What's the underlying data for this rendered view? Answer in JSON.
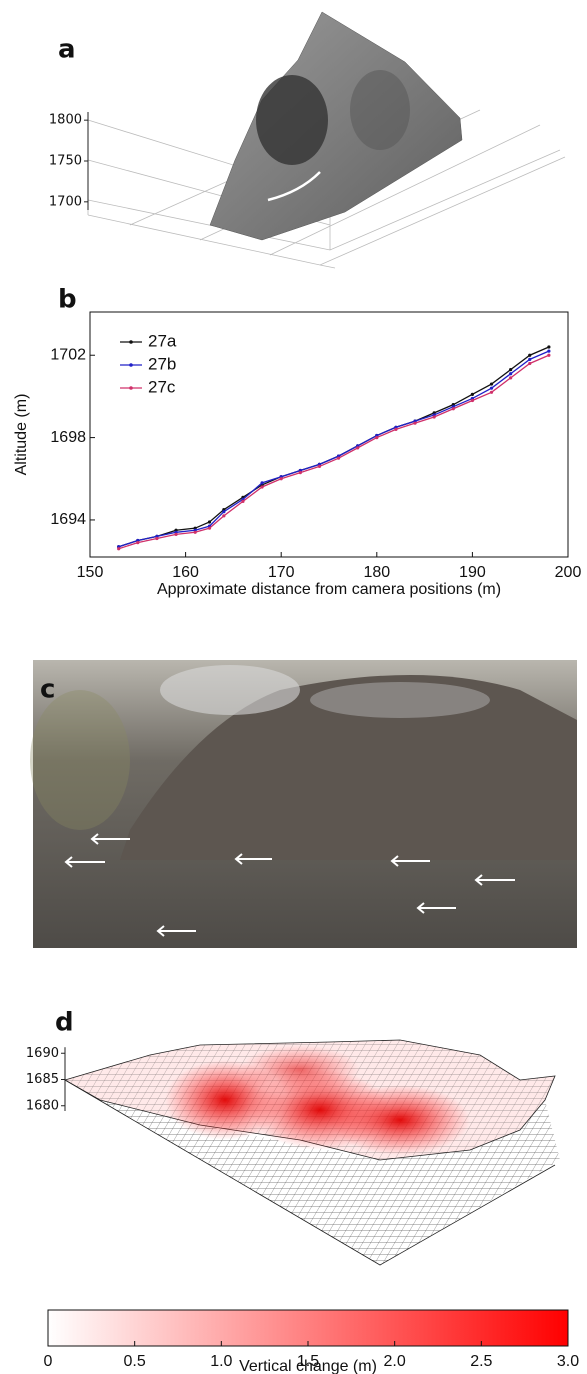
{
  "chart_data": [
    {
      "type": "surface",
      "panel_label": "a",
      "zlim": [
        1690,
        1810
      ],
      "zticks": [
        1800,
        1750,
        1700
      ],
      "color": "#7a7a7a"
    },
    {
      "type": "line",
      "panel_label": "b",
      "xlabel": "Approximate distance from camera positions (m)",
      "ylabel": "Altitude (m)",
      "x": [
        153,
        155,
        157,
        159,
        161,
        162.5,
        164,
        166,
        168,
        170,
        172,
        174,
        176,
        178,
        180,
        182,
        184,
        186,
        188,
        190,
        192,
        194,
        196,
        198
      ],
      "series": [
        {
          "name": "27a",
          "color": "#111111",
          "values": [
            1692.7,
            1693.0,
            1693.2,
            1693.5,
            1693.6,
            1693.9,
            1694.5,
            1695.1,
            1695.7,
            1696.1,
            1696.4,
            1696.7,
            1697.1,
            1697.6,
            1698.1,
            1698.5,
            1698.8,
            1699.2,
            1699.6,
            1700.1,
            1700.6,
            1701.3,
            1702.0,
            1702.4
          ]
        },
        {
          "name": "27b",
          "color": "#2020c8",
          "values": [
            1692.7,
            1693.0,
            1693.2,
            1693.4,
            1693.5,
            1693.7,
            1694.4,
            1695.0,
            1695.8,
            1696.1,
            1696.4,
            1696.7,
            1697.1,
            1697.6,
            1698.1,
            1698.5,
            1698.8,
            1699.1,
            1699.5,
            1699.9,
            1700.4,
            1701.1,
            1701.8,
            1702.2
          ]
        },
        {
          "name": "27c",
          "color": "#d0306a",
          "values": [
            1692.6,
            1692.9,
            1693.1,
            1693.3,
            1693.4,
            1693.6,
            1694.2,
            1694.9,
            1695.6,
            1696.0,
            1696.3,
            1696.6,
            1697.0,
            1697.5,
            1698.0,
            1698.4,
            1698.7,
            1699.0,
            1699.4,
            1699.8,
            1700.2,
            1700.9,
            1701.6,
            1702.0
          ]
        }
      ],
      "xlim": [
        150,
        200
      ],
      "xticks": [
        150,
        160,
        170,
        180,
        190,
        200
      ],
      "ylim": [
        1692.2,
        1704.1
      ],
      "yticks": [
        1694,
        1698,
        1702
      ],
      "legend": "upper left"
    },
    {
      "type": "photo",
      "panel_label": "c"
    },
    {
      "type": "surface",
      "panel_label": "d",
      "zlim": [
        1679,
        1691
      ],
      "zticks": [
        1690,
        1685,
        1680
      ],
      "color": "#e00000",
      "colorbar": {
        "label": "Vertical change (m)",
        "colors": [
          "#ffffff",
          "#ff0000"
        ],
        "lim": [
          0,
          3
        ],
        "ticks": [
          0,
          0.5,
          {
            "value": 1,
            "label": "1.0"
          },
          1.5,
          {
            "value": 2,
            "label": "2.0"
          },
          2.5,
          {
            "value": 3,
            "label": "3.0"
          }
        ]
      }
    }
  ]
}
